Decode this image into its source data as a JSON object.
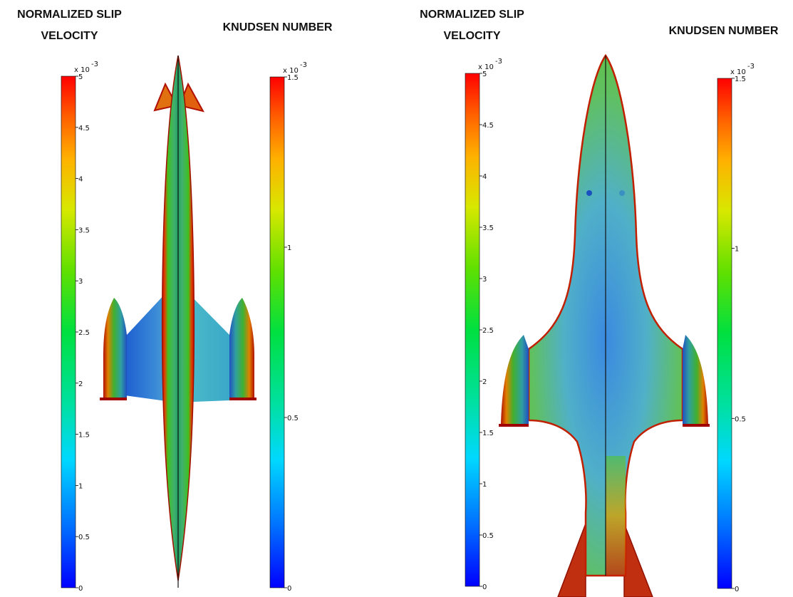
{
  "panels": [
    {
      "slip_title_line1": "NORMALIZED SLIP",
      "slip_title_line2": "VELOCITY",
      "knudsen_title": "KNUDSEN NUMBER",
      "slip_scale_exponent": "x 10",
      "slip_scale_power": "-3",
      "knudsen_scale_exponent": "x 10",
      "knudsen_scale_power": "-3",
      "slip_ticks": [
        "0",
        "0.5",
        "1",
        "1.5",
        "2",
        "2.5",
        "3",
        "3.5",
        "4",
        "4.5",
        "5"
      ],
      "knudsen_ticks": [
        "0",
        "0.5",
        "1",
        "1.5"
      ]
    },
    {
      "slip_title_line1": "NORMALIZED SLIP",
      "slip_title_line2": "VELOCITY",
      "knudsen_title": "KNUDSEN NUMBER",
      "slip_scale_exponent": "x 10",
      "slip_scale_power": "-3",
      "knudsen_scale_exponent": "x 10",
      "knudsen_scale_power": "-3",
      "slip_ticks": [
        "0",
        "0.5",
        "1",
        "1.5",
        "2",
        "2.5",
        "3",
        "3.5",
        "4",
        "4.5",
        "5"
      ],
      "knudsen_ticks": [
        "0",
        "0.5",
        "1",
        "1.5"
      ]
    }
  ],
  "colormap": [
    "#0000ff",
    "#0070ff",
    "#00d8ff",
    "#00e0a0",
    "#00e040",
    "#60e000",
    "#d8e800",
    "#ffb000",
    "#ff6000",
    "#ff0000"
  ]
}
